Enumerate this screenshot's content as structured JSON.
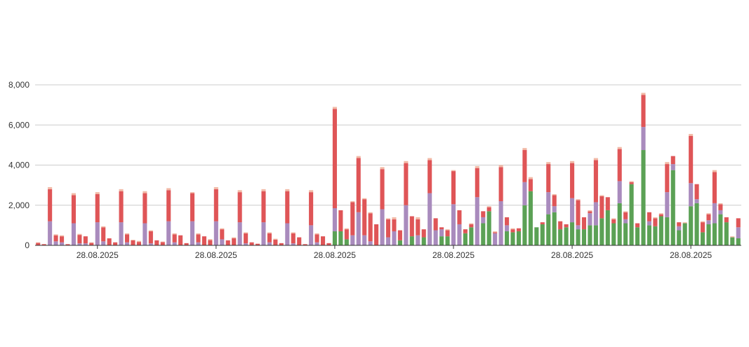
{
  "chart_data": {
    "type": "bar",
    "stacked": true,
    "ylim": [
      0,
      8000
    ],
    "y_ticks": [
      "0",
      "2,000",
      "4,000",
      "6,000",
      "8,000"
    ],
    "y_tick_values": [
      0,
      2000,
      4000,
      6000,
      8000
    ],
    "x_tick_labels": [
      "28.08.2025",
      "28.08.2025",
      "28.08.2025",
      "28.08.2025",
      "28.08.2025",
      "28.08.2025"
    ],
    "x_tick_indices": [
      10,
      30,
      50,
      70,
      90,
      110
    ],
    "grid": true,
    "colors": {
      "green": "#5ba155",
      "purple": "#a98bbd",
      "red": "#df5557",
      "light": "#f2b9a6",
      "gridline": "#cccccc",
      "axis": "#333333"
    },
    "bars": [
      [
        0,
        0,
        120,
        30
      ],
      [
        0,
        0,
        60,
        0
      ],
      [
        0,
        1200,
        1600,
        100
      ],
      [
        0,
        200,
        300,
        50
      ],
      [
        0,
        150,
        300,
        50
      ],
      [
        0,
        0,
        60,
        0
      ],
      [
        0,
        1100,
        1400,
        100
      ],
      [
        0,
        100,
        420,
        50
      ],
      [
        0,
        100,
        350,
        0
      ],
      [
        0,
        0,
        120,
        30
      ],
      [
        0,
        1150,
        1400,
        100
      ],
      [
        0,
        200,
        700,
        50
      ],
      [
        0,
        0,
        350,
        0
      ],
      [
        0,
        0,
        150,
        0
      ],
      [
        0,
        1150,
        1550,
        100
      ],
      [
        0,
        150,
        400,
        50
      ],
      [
        0,
        0,
        250,
        30
      ],
      [
        0,
        0,
        170,
        50
      ],
      [
        0,
        1100,
        1500,
        100
      ],
      [
        0,
        100,
        600,
        50
      ],
      [
        0,
        0,
        250,
        0
      ],
      [
        0,
        0,
        160,
        30
      ],
      [
        0,
        1200,
        1550,
        100
      ],
      [
        0,
        150,
        400,
        50
      ],
      [
        0,
        0,
        500,
        0
      ],
      [
        0,
        0,
        110,
        0
      ],
      [
        0,
        1200,
        1400,
        50
      ],
      [
        0,
        150,
        400,
        50
      ],
      [
        0,
        0,
        450,
        0
      ],
      [
        0,
        0,
        260,
        50
      ],
      [
        0,
        1200,
        1600,
        100
      ],
      [
        0,
        300,
        500,
        50
      ],
      [
        0,
        0,
        250,
        0
      ],
      [
        0,
        0,
        350,
        50
      ],
      [
        0,
        1150,
        1500,
        100
      ],
      [
        0,
        100,
        500,
        50
      ],
      [
        0,
        0,
        150,
        0
      ],
      [
        0,
        0,
        80,
        0
      ],
      [
        0,
        1150,
        1550,
        100
      ],
      [
        0,
        150,
        450,
        50
      ],
      [
        0,
        0,
        280,
        50
      ],
      [
        0,
        0,
        110,
        0
      ],
      [
        0,
        1100,
        1600,
        100
      ],
      [
        0,
        100,
        500,
        50
      ],
      [
        0,
        0,
        400,
        0
      ],
      [
        0,
        0,
        60,
        0
      ],
      [
        0,
        1000,
        1650,
        100
      ],
      [
        0,
        150,
        400,
        50
      ],
      [
        0,
        0,
        450,
        0
      ],
      [
        0,
        0,
        110,
        0
      ],
      [
        700,
        1150,
        4950,
        100
      ],
      [
        700,
        0,
        1050,
        0
      ],
      [
        300,
        0,
        500,
        50
      ],
      [
        0,
        500,
        1650,
        50
      ],
      [
        0,
        1650,
        2700,
        100
      ],
      [
        0,
        500,
        1800,
        50
      ],
      [
        0,
        200,
        1400,
        50
      ],
      [
        0,
        0,
        1050,
        0
      ],
      [
        0,
        1800,
        2000,
        100
      ],
      [
        0,
        400,
        900,
        50
      ],
      [
        0,
        700,
        600,
        100
      ],
      [
        250,
        0,
        500,
        0
      ],
      [
        0,
        2000,
        2100,
        100
      ],
      [
        450,
        0,
        1000,
        0
      ],
      [
        0,
        500,
        800,
        100
      ],
      [
        400,
        0,
        400,
        0
      ],
      [
        0,
        2600,
        1650,
        100
      ],
      [
        0,
        750,
        600,
        0
      ],
      [
        450,
        350,
        100,
        0
      ],
      [
        450,
        0,
        300,
        50
      ],
      [
        0,
        2050,
        1650,
        50
      ],
      [
        0,
        1050,
        700,
        0
      ],
      [
        600,
        0,
        200,
        0
      ],
      [
        900,
        0,
        150,
        50
      ],
      [
        0,
        2400,
        1450,
        100
      ],
      [
        1100,
        300,
        300,
        0
      ],
      [
        1700,
        0,
        200,
        50
      ],
      [
        0,
        600,
        50,
        50
      ],
      [
        0,
        2200,
        1700,
        100
      ],
      [
        700,
        300,
        400,
        0
      ],
      [
        650,
        0,
        150,
        50
      ],
      [
        700,
        0,
        150,
        0
      ],
      [
        2000,
        1150,
        1600,
        100
      ],
      [
        2700,
        0,
        600,
        100
      ],
      [
        900,
        0,
        0,
        0
      ],
      [
        1050,
        0,
        100,
        0
      ],
      [
        1550,
        1100,
        1400,
        100
      ],
      [
        1650,
        300,
        550,
        50
      ],
      [
        800,
        0,
        400,
        0
      ],
      [
        900,
        0,
        150,
        0
      ],
      [
        1150,
        1200,
        1750,
        100
      ],
      [
        800,
        200,
        1250,
        50
      ],
      [
        800,
        0,
        600,
        0
      ],
      [
        1000,
        600,
        100,
        50
      ],
      [
        1000,
        1150,
        2100,
        100
      ],
      [
        1350,
        0,
        1100,
        50
      ],
      [
        1750,
        0,
        650,
        0
      ],
      [
        1100,
        0,
        200,
        50
      ],
      [
        2100,
        1100,
        1600,
        100
      ],
      [
        1100,
        200,
        350,
        50
      ],
      [
        3050,
        0,
        100,
        50
      ],
      [
        900,
        0,
        200,
        0
      ],
      [
        4750,
        1150,
        1600,
        100
      ],
      [
        1000,
        200,
        450,
        0
      ],
      [
        950,
        0,
        400,
        50
      ],
      [
        1450,
        0,
        100,
        50
      ],
      [
        1400,
        1250,
        1400,
        100
      ],
      [
        3750,
        300,
        400,
        0
      ],
      [
        750,
        200,
        200,
        0
      ],
      [
        1100,
        0,
        0,
        50
      ],
      [
        1950,
        1150,
        2350,
        100
      ],
      [
        2100,
        200,
        750,
        0
      ],
      [
        650,
        0,
        500,
        50
      ],
      [
        1050,
        200,
        300,
        50
      ],
      [
        1100,
        1000,
        1550,
        100
      ],
      [
        1550,
        200,
        300,
        50
      ],
      [
        1150,
        0,
        250,
        0
      ],
      [
        400,
        0,
        0,
        50
      ],
      [
        350,
        550,
        450,
        0
      ]
    ]
  }
}
